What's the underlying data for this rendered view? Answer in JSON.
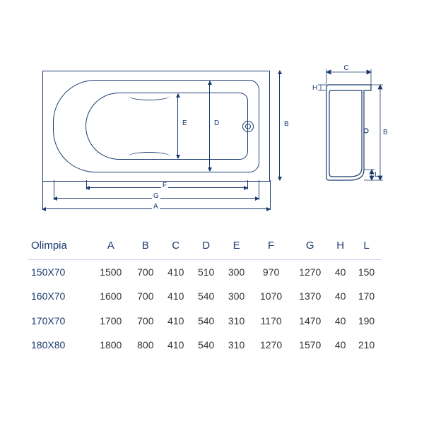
{
  "title": "Olimpia",
  "dim_labels": {
    "A": "A",
    "B": "B",
    "C": "C",
    "D": "D",
    "E": "E",
    "F": "F",
    "G": "G",
    "H": "H",
    "L": "L"
  },
  "columns": [
    "Olimpia",
    "A",
    "B",
    "C",
    "D",
    "E",
    "F",
    "G",
    "H",
    "L"
  ],
  "rows": [
    {
      "model": "150X70",
      "A": "1500",
      "B": "700",
      "C": "410",
      "D": "510",
      "E": "300",
      "F": "970",
      "G": "1270",
      "H": "40",
      "L": "150"
    },
    {
      "model": "160X70",
      "A": "1600",
      "B": "700",
      "C": "410",
      "D": "540",
      "E": "300",
      "F": "1070",
      "G": "1370",
      "H": "40",
      "L": "170"
    },
    {
      "model": "170X70",
      "A": "1700",
      "B": "700",
      "C": "410",
      "D": "540",
      "E": "310",
      "F": "1170",
      "G": "1470",
      "H": "40",
      "L": "190"
    },
    {
      "model": "180X80",
      "A": "1800",
      "B": "800",
      "C": "410",
      "D": "540",
      "E": "310",
      "F": "1270",
      "G": "1570",
      "H": "40",
      "L": "210"
    }
  ],
  "colors": {
    "line": "#1a3a6e",
    "text": "#333333",
    "bg": "#ffffff"
  }
}
